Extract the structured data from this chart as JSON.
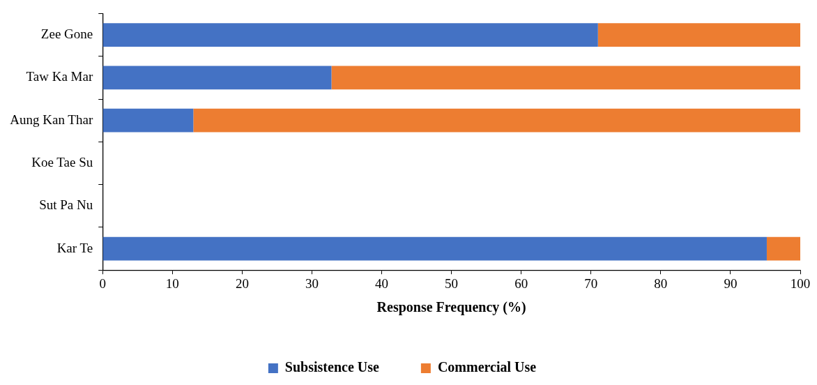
{
  "chart_data": {
    "type": "bar",
    "orientation": "horizontal",
    "stacked": true,
    "xlabel": "Response Frequency (%)",
    "categories": [
      "Zee Gone",
      "Taw Ka Mar",
      "Aung Kan Thar",
      "Koe Tae Su",
      "Sut Pa Nu",
      "Kar Te"
    ],
    "series": [
      {
        "name": "Subsistence Use",
        "color": "#4472c4",
        "values": [
          71,
          32.8,
          13,
          null,
          null,
          95.2
        ]
      },
      {
        "name": "Commercial Use",
        "color": "#ed7d31",
        "values": [
          29,
          67.2,
          87,
          null,
          null,
          4.8
        ]
      }
    ],
    "xlim": [
      0,
      100
    ],
    "xticks": [
      0,
      10,
      20,
      30,
      40,
      50,
      60,
      70,
      80,
      90,
      100
    ],
    "grid": false,
    "legend": "bottom"
  }
}
